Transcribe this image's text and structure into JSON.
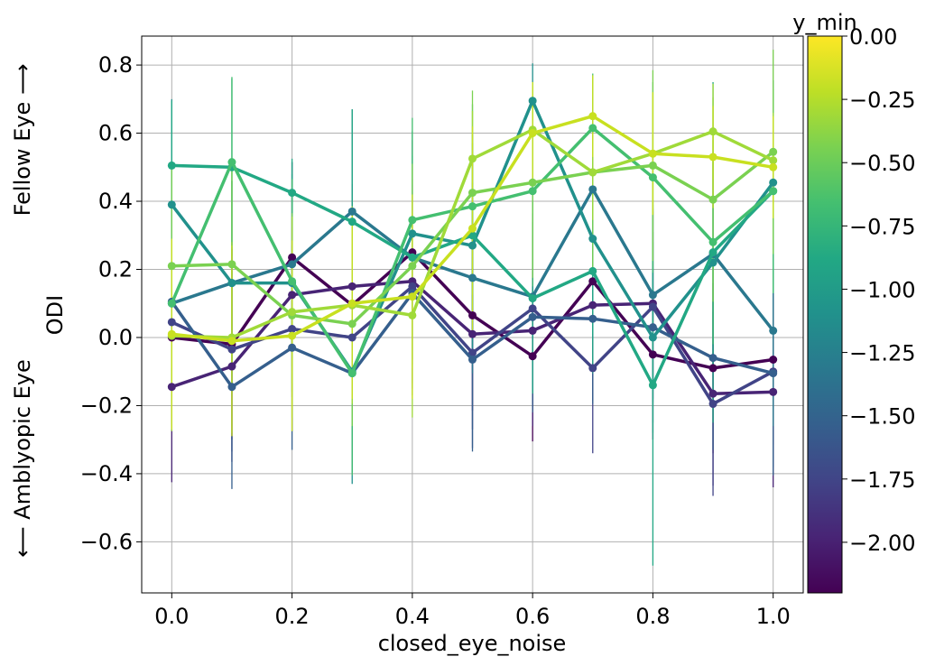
{
  "chart_data": {
    "type": "line",
    "xlabel": "closed_eye_noise",
    "ylabel": "ODI",
    "side_labels": {
      "top": "Fellow Eye ⟶",
      "bottom": "⟵ Amblyopic Eye"
    },
    "xlim": [
      -0.05,
      1.05
    ],
    "ylim": [
      -0.75,
      0.885
    ],
    "grid": true,
    "x": [
      0.0,
      0.1,
      0.2,
      0.3,
      0.4,
      0.5,
      0.6,
      0.7,
      0.8,
      0.9,
      1.0
    ],
    "x_tick_labels": [
      "0.0",
      "0.2",
      "0.4",
      "0.6",
      "0.8",
      "1.0"
    ],
    "x_ticks": [
      0.0,
      0.2,
      0.4,
      0.6,
      0.8,
      1.0
    ],
    "y_ticks": [
      -0.6,
      -0.4,
      -0.2,
      0.0,
      0.2,
      0.4,
      0.6,
      0.8
    ],
    "y_tick_labels": [
      "−0.6",
      "−0.4",
      "−0.2",
      "0.0",
      "0.2",
      "0.4",
      "0.6",
      "0.8"
    ],
    "colorbar": {
      "label": "y_min",
      "range": [
        -2.2,
        0.0
      ],
      "ticks": [
        0.0,
        -0.25,
        -0.5,
        -0.75,
        -1.0,
        -1.25,
        -1.5,
        -1.75,
        -2.0
      ],
      "tick_labels": [
        "0.00",
        "−0.25",
        "−0.50",
        "−0.75",
        "−1.00",
        "−1.25",
        "−1.50",
        "−1.75",
        "−2.00"
      ],
      "colormap": "viridis"
    },
    "series": [
      {
        "color": "#440154",
        "y": [
          0.0,
          -0.02,
          0.235,
          0.095,
          0.25,
          0.065,
          -0.055,
          0.165,
          -0.05,
          -0.09,
          -0.065
        ],
        "err": [
          0.25,
          0.28,
          0.28,
          0.3,
          0.33,
          0.28,
          0.25,
          0.25,
          0.25,
          0.25,
          0.25
        ]
      },
      {
        "color": "#482475",
        "y": [
          -0.145,
          -0.085,
          0.125,
          0.15,
          0.165,
          0.01,
          0.02,
          0.095,
          0.1,
          -0.165,
          -0.16
        ],
        "err": [
          0.28,
          0.28,
          0.3,
          0.3,
          0.3,
          0.28,
          0.28,
          0.28,
          0.28,
          0.27,
          0.28
        ]
      },
      {
        "color": "#414487",
        "y": [
          0.045,
          -0.035,
          0.025,
          0.0,
          0.15,
          -0.045,
          0.085,
          -0.09,
          0.09,
          -0.195,
          -0.1
        ],
        "err": [
          0.3,
          0.3,
          0.3,
          0.3,
          0.3,
          0.28,
          0.28,
          0.25,
          0.28,
          0.27,
          0.28
        ]
      },
      {
        "color": "#355f8d",
        "y": [
          0.105,
          -0.145,
          -0.03,
          -0.105,
          0.13,
          -0.065,
          0.06,
          0.055,
          0.03,
          -0.06,
          -0.105
        ],
        "err": [
          0.3,
          0.3,
          0.3,
          0.29,
          0.3,
          0.27,
          0.28,
          0.25,
          0.28,
          0.27,
          0.3
        ]
      },
      {
        "color": "#2a788e",
        "y": [
          0.1,
          0.16,
          0.215,
          0.37,
          0.235,
          0.175,
          0.12,
          0.435,
          0.125,
          0.245,
          0.02
        ],
        "err": [
          0.3,
          0.3,
          0.3,
          0.3,
          0.3,
          0.28,
          0.28,
          0.27,
          0.28,
          0.27,
          0.28
        ]
      },
      {
        "color": "#21918c",
        "y": [
          0.39,
          0.16,
          0.16,
          -0.1,
          0.305,
          0.27,
          0.695,
          0.29,
          0.0,
          0.22,
          0.455
        ],
        "err": [
          0.31,
          0.3,
          0.32,
          0.33,
          0.3,
          0.3,
          0.11,
          0.28,
          0.28,
          0.3,
          0.3
        ]
      },
      {
        "color": "#22a884",
        "y": [
          0.505,
          0.5,
          0.425,
          0.34,
          0.235,
          0.3,
          0.115,
          0.195,
          -0.14,
          0.25,
          0.43
        ],
        "err": [
          0.19,
          0.26,
          0.1,
          0.33,
          0.3,
          0.3,
          0.28,
          0.3,
          0.53,
          0.5,
          0.3
        ]
      },
      {
        "color": "#44bf70",
        "y": [
          0.1,
          0.515,
          0.165,
          -0.105,
          0.345,
          0.385,
          0.43,
          0.615,
          0.47,
          0.28,
          0.43
        ],
        "err": [
          0.3,
          0.25,
          0.3,
          0.3,
          0.3,
          0.3,
          0.28,
          0.16,
          0.28,
          0.3,
          0.3
        ]
      },
      {
        "color": "#7ad151",
        "y": [
          0.21,
          0.215,
          0.065,
          0.04,
          0.21,
          0.425,
          0.455,
          0.485,
          0.505,
          0.405,
          0.545
        ],
        "err": [
          0.3,
          0.3,
          0.3,
          0.3,
          0.3,
          0.3,
          0.28,
          0.28,
          0.28,
          0.3,
          0.3
        ]
      },
      {
        "color": "#a0da39",
        "y": [
          0.005,
          0.0,
          0.075,
          0.095,
          0.065,
          0.525,
          0.61,
          0.485,
          0.54,
          0.605,
          0.52
        ],
        "err": [
          0.28,
          0.28,
          0.28,
          0.29,
          0.3,
          0.14,
          0.14,
          0.14,
          0.18,
          0.14,
          0.14
        ]
      },
      {
        "color": "#c8e020",
        "y": [
          0.01,
          -0.01,
          0.005,
          0.1,
          0.12,
          0.32,
          0.6,
          0.65,
          0.54,
          0.53,
          0.5
        ],
        "err": [
          0.28,
          0.28,
          0.28,
          0.28,
          0.3,
          0.3,
          0.15,
          0.12,
          0.18,
          0.15,
          0.15
        ]
      }
    ]
  }
}
